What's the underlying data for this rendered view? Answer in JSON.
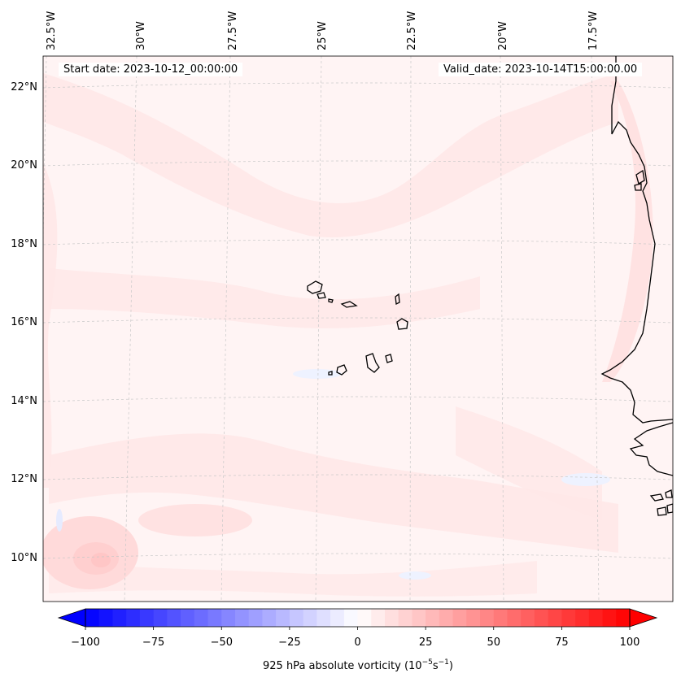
{
  "header": {
    "start_date": "Start date: 2023-10-12_00:00:00",
    "valid_date": "Valid_date: 2023-10-14T15:00:00.00"
  },
  "map": {
    "lon_labels": [
      "32.5°W",
      "30°W",
      "27.5°W",
      "25°W",
      "22.5°W",
      "20°W",
      "17.5°W"
    ],
    "lat_labels": [
      "22°N",
      "20°N",
      "18°N",
      "16°N",
      "14°N",
      "12°N",
      "10°N"
    ],
    "field_colors": {
      "background": "#fff4f4",
      "light_pink": "#ffe8e8",
      "pink": "#ffdada",
      "vortex_center": "#ffc6c6",
      "light_blue": "#eef2ff",
      "coastline": "#000000",
      "gridline": "#c8c8c8"
    }
  },
  "colorbar": {
    "label_prefix": "925 hPa absolute vorticity (10",
    "label_exp1": "−5",
    "label_mid": "s",
    "label_exp2": "−1",
    "label_suffix": ")",
    "min": -100,
    "max": 100,
    "ticks": [
      "−100",
      "−75",
      "−50",
      "−25",
      "0",
      "25",
      "50",
      "75",
      "100"
    ],
    "color_low": "#0000ff",
    "color_mid": "#ffffff",
    "color_high": "#ff0000"
  }
}
